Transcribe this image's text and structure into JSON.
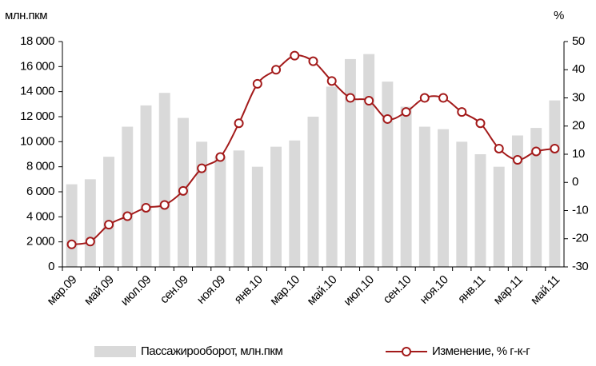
{
  "chart_data": {
    "type": "bar_line",
    "y_label": "млн.пкм",
    "y2_label": "%",
    "categories": [
      "мар.09",
      null,
      "май.09",
      null,
      "июл.09",
      null,
      "сен.09",
      null,
      "ноя.09",
      null,
      "янв.10",
      null,
      "мар.10",
      null,
      "май.10",
      null,
      "июл.10",
      null,
      "сен.10",
      null,
      "ноя.10",
      null,
      "янв.11",
      null,
      "мар.11",
      null,
      "май.11"
    ],
    "series": [
      {
        "name": "Пассажирооборот, млн.пкм",
        "color": "#d9d9d9",
        "kind": "bar",
        "values": [
          6600,
          7000,
          8800,
          11200,
          12900,
          13900,
          11900,
          10000,
          8800,
          9300,
          8000,
          9600,
          10100,
          12000,
          14400,
          16600,
          17000,
          14800,
          12800,
          11200,
          11000,
          10000,
          9000,
          8000,
          10500,
          11100,
          13300
        ]
      },
      {
        "name": "Изменение, % г-к-г",
        "color": "#a31a1a",
        "kind": "line",
        "axis": "y2",
        "values": [
          -22,
          -21,
          -15,
          -12,
          -9,
          -8,
          -3,
          5,
          9,
          21,
          35,
          40,
          45,
          43,
          36,
          30,
          29,
          22.5,
          25,
          30,
          30,
          25,
          21,
          12,
          8,
          11,
          12
        ]
      }
    ],
    "ylim": [
      0,
      18000
    ],
    "yticks": [
      0,
      {
        "value": 2000,
        "label": "2 000"
      },
      {
        "value": 4000,
        "label": "4 000"
      },
      {
        "value": 6000,
        "label": "6 000"
      },
      {
        "value": 8000,
        "label": "8 000"
      },
      {
        "value": 10000,
        "label": "10 000"
      },
      {
        "value": 12000,
        "label": "12 000"
      },
      {
        "value": 14000,
        "label": "14 000"
      },
      {
        "value": 16000,
        "label": "16 000"
      },
      {
        "value": 18000,
        "label": "18 000"
      }
    ],
    "y2lim": [
      -30,
      50
    ],
    "y2ticks": [
      -30,
      -20,
      -10,
      0,
      10,
      20,
      30,
      40,
      50
    ],
    "legend": "bottom"
  }
}
